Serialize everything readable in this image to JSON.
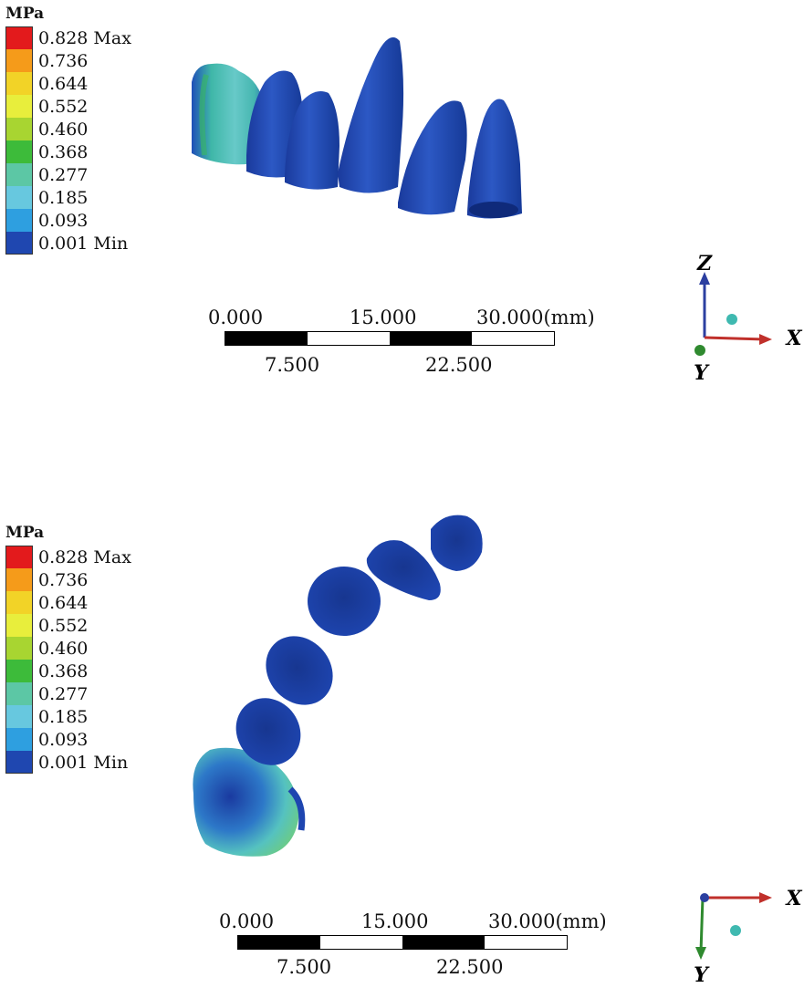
{
  "panels": [
    {
      "legend": {
        "unit": "MPa",
        "entries": [
          {
            "label": "0.828 Max",
            "color": "#e31a1c"
          },
          {
            "label": "0.736",
            "color": "#f59b1a"
          },
          {
            "label": "0.644",
            "color": "#f2d327"
          },
          {
            "label": "0.552",
            "color": "#e8ee3c"
          },
          {
            "label": "0.460",
            "color": "#a8d531"
          },
          {
            "label": "0.368",
            "color": "#3dbb3a"
          },
          {
            "label": "0.277",
            "color": "#5cc7a5"
          },
          {
            "label": "0.185",
            "color": "#67c8df"
          },
          {
            "label": "0.093",
            "color": "#2e9fe0"
          },
          {
            "label": "0.001 Min",
            "color": "#1f47b0"
          }
        ]
      },
      "scale": {
        "top_labels": [
          "0.000",
          "15.000",
          "30.000(mm)"
        ],
        "bottom_labels": [
          "7.500",
          "22.500"
        ]
      },
      "axes": {
        "vertical": "Z",
        "horizontal": "X",
        "depth": "Y"
      }
    },
    {
      "legend": {
        "unit": "MPa",
        "entries": [
          {
            "label": "0.828 Max",
            "color": "#e31a1c"
          },
          {
            "label": "0.736",
            "color": "#f59b1a"
          },
          {
            "label": "0.644",
            "color": "#f2d327"
          },
          {
            "label": "0.552",
            "color": "#e8ee3c"
          },
          {
            "label": "0.460",
            "color": "#a8d531"
          },
          {
            "label": "0.368",
            "color": "#3dbb3a"
          },
          {
            "label": "0.277",
            "color": "#5cc7a5"
          },
          {
            "label": "0.185",
            "color": "#67c8df"
          },
          {
            "label": "0.093",
            "color": "#2e9fe0"
          },
          {
            "label": "0.001 Min",
            "color": "#1f47b0"
          }
        ]
      },
      "scale": {
        "top_labels": [
          "0.000",
          "15.000",
          "30.000(mm)"
        ],
        "bottom_labels": [
          "7.500",
          "22.500"
        ]
      },
      "axes": {
        "horizontal": "X",
        "depth": "Y"
      }
    }
  ],
  "colors": {
    "tooth_blue": "#1b3fa8",
    "tooth_blue_dark": "#122f86",
    "tooth_stress_cyan": "#4fc1c0",
    "tooth_stress_green": "#58c06f",
    "axis_z": "#2b3fa0",
    "axis_x": "#c0302b",
    "axis_y": "#2f8a2f",
    "axis_dot": "#3fb9b0"
  }
}
